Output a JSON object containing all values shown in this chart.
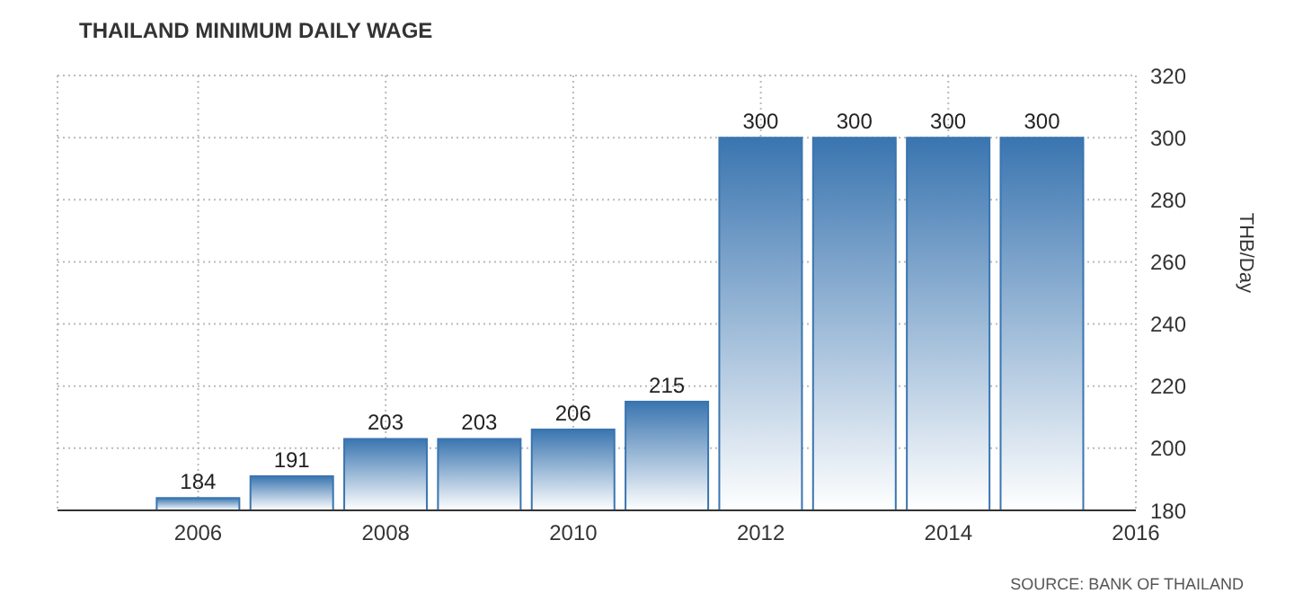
{
  "chart_data": {
    "type": "bar",
    "title": "THAILAND MINIMUM DAILY WAGE",
    "ylabel": "THB/Day",
    "x": [
      2006,
      2007,
      2008,
      2009,
      2010,
      2011,
      2012,
      2013,
      2014,
      2015
    ],
    "values": [
      184,
      191,
      203,
      203,
      206,
      215,
      300,
      300,
      300,
      300
    ],
    "color": "#3a75b0",
    "xlim": [
      2004.5,
      2016
    ],
    "xticks": [
      2006,
      2008,
      2010,
      2012,
      2014,
      2016
    ],
    "ylim": [
      180,
      320
    ],
    "yticks": [
      180,
      200,
      220,
      240,
      260,
      280,
      300,
      320
    ],
    "grid": true,
    "data_labels": true,
    "annotations": [
      "SOURCE: BANK OF THAILAND"
    ]
  }
}
